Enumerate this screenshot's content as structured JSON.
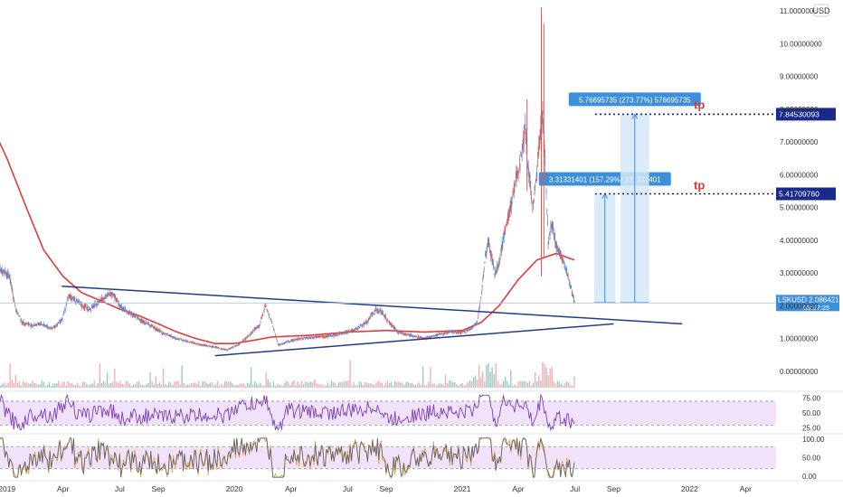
{
  "chart_data": {
    "type": "candlestick",
    "symbol_label": "LSKUSD",
    "currency_label": "USD",
    "price_axis": {
      "scale": "linear",
      "ylim": [
        0,
        11
      ],
      "tick_labels": [
        "11.00000000",
        "10.00000000",
        "9.00000000",
        "8.00000000",
        "7.00000000",
        "6.00000000",
        "5.00000000",
        "4.00000000",
        "3.00000000",
        "2.00000000",
        "1.00000000",
        "0.00000000"
      ],
      "tick_values": [
        11,
        10,
        9,
        8,
        7,
        6,
        5,
        4,
        3,
        2,
        1,
        0
      ]
    },
    "time_axis": {
      "range": [
        "2018-12-15",
        "2022-06-15"
      ],
      "tick_labels": [
        "2019",
        "Apr",
        "Jul",
        "Sep",
        "2020",
        "Apr",
        "Jul",
        "Sep",
        "2021",
        "Apr",
        "Jul",
        "Sep",
        "2022",
        "Apr"
      ],
      "tick_dates": [
        "2019-01-01",
        "2019-04-01",
        "2019-07-01",
        "2019-09-01",
        "2020-01-01",
        "2020-04-01",
        "2020-07-01",
        "2020-09-01",
        "2021-01-01",
        "2021-04-01",
        "2021-07-01",
        "2021-09-01",
        "2022-01-01",
        "2022-04-01"
      ]
    },
    "price_path": [
      [
        "2018-12-15",
        3.2
      ],
      [
        "2019-01-05",
        2.9
      ],
      [
        "2019-01-15",
        1.9
      ],
      [
        "2019-01-25",
        1.5
      ],
      [
        "2019-02-10",
        1.4
      ],
      [
        "2019-02-25",
        1.45
      ],
      [
        "2019-03-15",
        1.3
      ],
      [
        "2019-03-31",
        1.6
      ],
      [
        "2019-04-10",
        2.3
      ],
      [
        "2019-04-20",
        2.2
      ],
      [
        "2019-05-01",
        2.0
      ],
      [
        "2019-05-15",
        1.9
      ],
      [
        "2019-06-01",
        2.2
      ],
      [
        "2019-06-20",
        2.4
      ],
      [
        "2019-07-01",
        2.0
      ],
      [
        "2019-07-15",
        1.8
      ],
      [
        "2019-08-01",
        1.6
      ],
      [
        "2019-08-20",
        1.4
      ],
      [
        "2019-09-10",
        1.15
      ],
      [
        "2019-10-01",
        1.0
      ],
      [
        "2019-10-20",
        0.9
      ],
      [
        "2019-11-10",
        0.8
      ],
      [
        "2019-12-01",
        0.75
      ],
      [
        "2019-12-20",
        0.65
      ],
      [
        "2020-01-10",
        0.85
      ],
      [
        "2020-01-25",
        1.1
      ],
      [
        "2020-02-10",
        1.4
      ],
      [
        "2020-02-20",
        2.0
      ],
      [
        "2020-03-01",
        1.5
      ],
      [
        "2020-03-12",
        0.8
      ],
      [
        "2020-03-25",
        0.9
      ],
      [
        "2020-04-15",
        1.0
      ],
      [
        "2020-05-10",
        1.05
      ],
      [
        "2020-06-10",
        1.1
      ],
      [
        "2020-07-10",
        1.25
      ],
      [
        "2020-08-01",
        1.5
      ],
      [
        "2020-08-15",
        1.9
      ],
      [
        "2020-08-25",
        1.8
      ],
      [
        "2020-09-05",
        1.5
      ],
      [
        "2020-09-20",
        1.2
      ],
      [
        "2020-10-10",
        1.1
      ],
      [
        "2020-11-01",
        1.0
      ],
      [
        "2020-11-20",
        1.1
      ],
      [
        "2020-12-10",
        1.2
      ],
      [
        "2021-01-01",
        1.2
      ],
      [
        "2021-01-15",
        1.3
      ],
      [
        "2021-01-25",
        1.5
      ],
      [
        "2021-02-01",
        2.4
      ],
      [
        "2021-02-07",
        3.5
      ],
      [
        "2021-02-12",
        4.0
      ],
      [
        "2021-02-22",
        3.0
      ],
      [
        "2021-03-01",
        3.3
      ],
      [
        "2021-03-10",
        4.3
      ],
      [
        "2021-03-20",
        5.0
      ],
      [
        "2021-03-28",
        5.8
      ],
      [
        "2021-04-05",
        6.5
      ],
      [
        "2021-04-12",
        7.5
      ],
      [
        "2021-04-18",
        6.0
      ],
      [
        "2021-04-24",
        5.0
      ],
      [
        "2021-05-01",
        6.0
      ],
      [
        "2021-05-07",
        7.5
      ],
      [
        "2021-05-10",
        7.8
      ],
      [
        "2021-05-14",
        6.5
      ],
      [
        "2021-05-19",
        4.0
      ],
      [
        "2021-05-25",
        4.5
      ],
      [
        "2021-06-01",
        3.8
      ],
      [
        "2021-06-10",
        3.5
      ],
      [
        "2021-06-18",
        3.0
      ],
      [
        "2021-06-25",
        2.5
      ],
      [
        "2021-06-30",
        2.09
      ]
    ],
    "ma_path": [
      [
        "2018-12-15",
        7.2
      ],
      [
        "2019-01-01",
        6.5
      ],
      [
        "2019-02-01",
        5.0
      ],
      [
        "2019-03-01",
        3.7
      ],
      [
        "2019-04-01",
        2.9
      ],
      [
        "2019-05-01",
        2.4
      ],
      [
        "2019-06-01",
        2.15
      ],
      [
        "2019-07-01",
        1.9
      ],
      [
        "2019-08-01",
        1.7
      ],
      [
        "2019-09-01",
        1.45
      ],
      [
        "2019-10-01",
        1.2
      ],
      [
        "2019-11-01",
        1.0
      ],
      [
        "2019-12-01",
        0.85
      ],
      [
        "2020-01-01",
        0.85
      ],
      [
        "2020-02-01",
        0.95
      ],
      [
        "2020-03-01",
        1.05
      ],
      [
        "2020-05-01",
        1.1
      ],
      [
        "2020-07-01",
        1.2
      ],
      [
        "2020-09-01",
        1.25
      ],
      [
        "2020-11-01",
        1.2
      ],
      [
        "2021-01-01",
        1.25
      ],
      [
        "2021-02-01",
        1.5
      ],
      [
        "2021-03-01",
        2.0
      ],
      [
        "2021-04-01",
        2.8
      ],
      [
        "2021-05-01",
        3.4
      ],
      [
        "2021-06-01",
        3.6
      ],
      [
        "2021-06-30",
        3.4
      ]
    ],
    "spikes": [
      {
        "date": "2021-05-08",
        "high": 11.1,
        "low": 2.9
      },
      {
        "date": "2021-05-12",
        "high": 10.6,
        "low": 3.5
      },
      {
        "date": "2021-04-15",
        "high": 8.3,
        "low": 5.5
      }
    ],
    "trendlines": [
      {
        "name": "descending-resistance",
        "from": [
          "2019-03-30",
          2.6
        ],
        "to": [
          "2021-12-20",
          1.45
        ]
      },
      {
        "name": "ascending-support",
        "from": [
          "2019-12-01",
          0.48
        ],
        "to": [
          "2021-09-01",
          1.45
        ]
      }
    ],
    "targets": [
      {
        "value": 7.84530093,
        "label": "7.84530093",
        "tp_label": "tp"
      },
      {
        "value": 5.4170976,
        "label": "5.41709760",
        "tp_label": "tp"
      }
    ],
    "measure_boxes": [
      {
        "from_date": "2021-08-01",
        "to_date": "2021-09-04",
        "base": 2.1,
        "top": 5.4170976,
        "label": "3.31331401 (157.29%) 331331401"
      },
      {
        "from_date": "2021-09-12",
        "to_date": "2021-10-28",
        "base": 2.1,
        "top": 7.84530093,
        "label": "5.76695735 (273.77%) 576695735"
      }
    ],
    "last_price": {
      "value": 2.08642141,
      "label": "2.08642141",
      "countdown": "08:57:25"
    },
    "volume": {
      "note": "volume histogram along price-pane bottom"
    },
    "indicator1": {
      "tick_labels": [
        "75.00",
        "50.00",
        "25.00"
      ],
      "levels": [
        70,
        30
      ],
      "ylim": [
        20,
        82
      ]
    },
    "indicator2": {
      "tick_labels": [
        "100.00",
        "50.00",
        "0.00"
      ],
      "levels": [
        80,
        20
      ],
      "ylim": [
        -5,
        105
      ]
    },
    "colors": {
      "up": "#5b8bd4",
      "down": "#d45b5b",
      "ma": "#e03b3b",
      "trend": "#1f3d8a",
      "target_line": "#1a237e",
      "target_box": "#1a2a8c",
      "measure_fill": "#d6e8f7",
      "measure_label": "#3d8fdb",
      "last_price_line": "#a9c8ee",
      "last_price_label": "#3d8fdb",
      "indicator_band": "#f0e2fb",
      "indicator_line": "#7e3fb0",
      "indicator2_line": "#666666",
      "tp_text": "#d63a3a"
    }
  }
}
